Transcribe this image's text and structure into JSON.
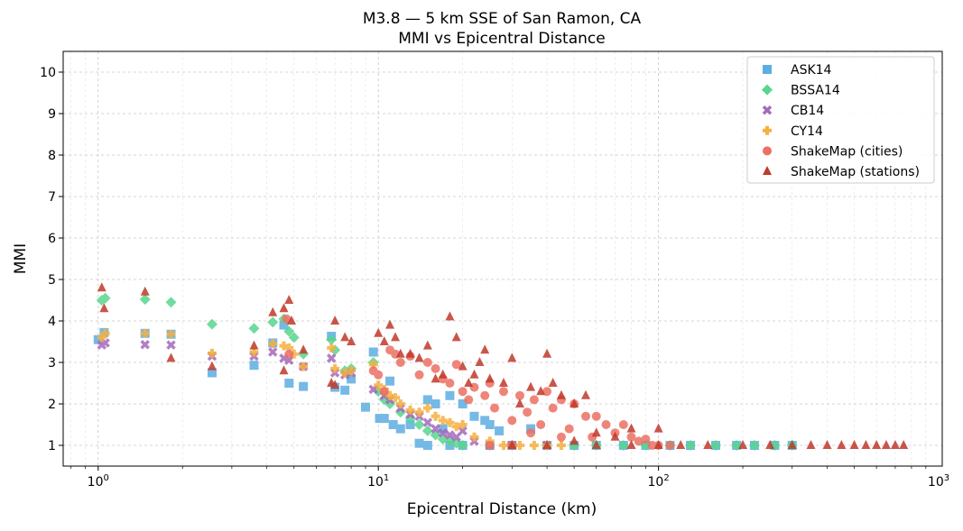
{
  "chart_data": {
    "type": "scatter",
    "title": "M3.8 — 5 km SSE of San Ramon, CA",
    "subtitle": "MMI vs Epicentral Distance",
    "xlabel": "Epicentral Distance (km)",
    "ylabel": "MMI",
    "xscale": "log",
    "xlim": [
      0.75,
      1030
    ],
    "ylim": [
      0.5,
      10.5
    ],
    "xticks": [
      {
        "value": 1,
        "base": "10",
        "exp": "0"
      },
      {
        "value": 10,
        "base": "10",
        "exp": "1"
      },
      {
        "value": 100,
        "base": "10",
        "exp": "2"
      },
      {
        "value": 1000,
        "base": "10",
        "exp": "3"
      }
    ],
    "yticks": [
      "1",
      "2",
      "3",
      "4",
      "5",
      "6",
      "7",
      "8",
      "9",
      "10"
    ],
    "grid": true,
    "legend_position": "top-right",
    "series": [
      {
        "name": "ASK14",
        "marker": "square",
        "color": "#5dade2",
        "points": [
          [
            1.0,
            3.55
          ],
          [
            1.05,
            3.72
          ],
          [
            1.47,
            3.7
          ],
          [
            1.82,
            3.68
          ],
          [
            2.55,
            2.75
          ],
          [
            3.6,
            2.93
          ],
          [
            4.2,
            3.47
          ],
          [
            4.6,
            3.9
          ],
          [
            4.8,
            2.5
          ],
          [
            5.4,
            2.42
          ],
          [
            6.8,
            3.63
          ],
          [
            7.0,
            2.4
          ],
          [
            7.6,
            2.33
          ],
          [
            8.0,
            2.6
          ],
          [
            9.0,
            1.92
          ],
          [
            9.6,
            3.25
          ],
          [
            10.1,
            1.65
          ],
          [
            10.5,
            1.65
          ],
          [
            11,
            2.55
          ],
          [
            11.3,
            1.5
          ],
          [
            12,
            1.4
          ],
          [
            13,
            1.5
          ],
          [
            14,
            1.05
          ],
          [
            15,
            2.1
          ],
          [
            16,
            2.0
          ],
          [
            17,
            1.4
          ],
          [
            18,
            2.2
          ],
          [
            20,
            2.0
          ],
          [
            22,
            1.7
          ],
          [
            24,
            1.6
          ],
          [
            25,
            1.5
          ],
          [
            27,
            1.35
          ],
          [
            30,
            1.0
          ],
          [
            35,
            1.4
          ],
          [
            15,
            1.0
          ],
          [
            18,
            1.0
          ],
          [
            20,
            1.0
          ],
          [
            25,
            1.0
          ],
          [
            40,
            1.0
          ],
          [
            50,
            1.0
          ],
          [
            60,
            1.0
          ],
          [
            75,
            1.0
          ],
          [
            90,
            1.0
          ],
          [
            110,
            1.0
          ],
          [
            130,
            1.0
          ],
          [
            160,
            1.0
          ],
          [
            190,
            1.0
          ],
          [
            220,
            1.0
          ],
          [
            260,
            1.0
          ],
          [
            300,
            1.0
          ]
        ]
      },
      {
        "name": "BSSA14",
        "marker": "diamond",
        "color": "#58d68d",
        "points": [
          [
            1.03,
            4.5
          ],
          [
            1.06,
            4.55
          ],
          [
            1.47,
            4.52
          ],
          [
            1.82,
            4.45
          ],
          [
            2.55,
            3.92
          ],
          [
            3.6,
            3.82
          ],
          [
            4.2,
            3.97
          ],
          [
            4.6,
            4.05
          ],
          [
            4.8,
            3.75
          ],
          [
            5.0,
            3.6
          ],
          [
            5.4,
            3.2
          ],
          [
            6.8,
            3.55
          ],
          [
            7.0,
            3.3
          ],
          [
            7.6,
            2.8
          ],
          [
            8.0,
            2.85
          ],
          [
            9.6,
            3.0
          ],
          [
            10,
            2.3
          ],
          [
            10.5,
            2.1
          ],
          [
            11,
            2.0
          ],
          [
            12,
            1.8
          ],
          [
            13,
            1.65
          ],
          [
            14,
            1.5
          ],
          [
            15,
            1.35
          ],
          [
            16,
            1.25
          ],
          [
            17,
            1.15
          ],
          [
            18,
            1.1
          ],
          [
            19,
            1.05
          ],
          [
            20,
            1.0
          ],
          [
            25,
            1.0
          ],
          [
            30,
            1.0
          ],
          [
            40,
            1.0
          ],
          [
            50,
            1.0
          ],
          [
            60,
            1.0
          ],
          [
            75,
            1.0
          ],
          [
            90,
            1.0
          ],
          [
            110,
            1.0
          ],
          [
            130,
            1.0
          ],
          [
            160,
            1.0
          ],
          [
            190,
            1.0
          ],
          [
            220,
            1.0
          ],
          [
            260,
            1.0
          ],
          [
            300,
            1.0
          ]
        ]
      },
      {
        "name": "CB14",
        "marker": "x",
        "color": "#a569bd",
        "points": [
          [
            1.03,
            3.42
          ],
          [
            1.06,
            3.47
          ],
          [
            1.47,
            3.43
          ],
          [
            1.82,
            3.42
          ],
          [
            2.55,
            3.15
          ],
          [
            3.6,
            3.15
          ],
          [
            4.2,
            3.25
          ],
          [
            4.6,
            3.1
          ],
          [
            4.8,
            3.05
          ],
          [
            5.4,
            2.9
          ],
          [
            6.8,
            3.1
          ],
          [
            7.0,
            2.75
          ],
          [
            7.6,
            2.7
          ],
          [
            8.0,
            2.75
          ],
          [
            9.6,
            2.35
          ],
          [
            10.5,
            2.2
          ],
          [
            11,
            2.1
          ],
          [
            12,
            1.9
          ],
          [
            13,
            1.75
          ],
          [
            14,
            1.7
          ],
          [
            15,
            1.55
          ],
          [
            16,
            1.4
          ],
          [
            17,
            1.3
          ],
          [
            18,
            1.25
          ],
          [
            19,
            1.2
          ],
          [
            20,
            1.35
          ],
          [
            22,
            1.1
          ],
          [
            25,
            1.0
          ],
          [
            30,
            1.0
          ],
          [
            40,
            1.0
          ]
        ]
      },
      {
        "name": "CY14",
        "marker": "plus",
        "color": "#f5b041",
        "points": [
          [
            1.03,
            3.6
          ],
          [
            1.06,
            3.7
          ],
          [
            1.47,
            3.7
          ],
          [
            1.82,
            3.68
          ],
          [
            2.55,
            3.22
          ],
          [
            3.6,
            3.25
          ],
          [
            4.2,
            3.45
          ],
          [
            4.6,
            3.4
          ],
          [
            4.8,
            3.35
          ],
          [
            5.0,
            3.2
          ],
          [
            5.4,
            2.9
          ],
          [
            6.8,
            3.35
          ],
          [
            7.0,
            2.85
          ],
          [
            7.6,
            2.75
          ],
          [
            8.0,
            2.8
          ],
          [
            9.6,
            2.95
          ],
          [
            10,
            2.45
          ],
          [
            10.5,
            2.35
          ],
          [
            11,
            2.2
          ],
          [
            11.5,
            2.15
          ],
          [
            12,
            2.0
          ],
          [
            13,
            1.85
          ],
          [
            14,
            1.8
          ],
          [
            15,
            1.9
          ],
          [
            16,
            1.7
          ],
          [
            17,
            1.6
          ],
          [
            18,
            1.55
          ],
          [
            19,
            1.45
          ],
          [
            20,
            1.5
          ],
          [
            22,
            1.2
          ],
          [
            25,
            1.1
          ],
          [
            28,
            1.0
          ],
          [
            32,
            1.0
          ],
          [
            36,
            1.0
          ],
          [
            40,
            1.0
          ],
          [
            45,
            1.0
          ]
        ]
      },
      {
        "name": "ShakeMap (cities)",
        "marker": "circle",
        "color": "#ec7063",
        "points": [
          [
            4.7,
            4.05
          ],
          [
            4.8,
            3.2
          ],
          [
            9.6,
            2.8
          ],
          [
            10,
            2.7
          ],
          [
            10.5,
            2.3
          ],
          [
            11,
            3.3
          ],
          [
            11.5,
            3.2
          ],
          [
            12,
            3.0
          ],
          [
            13,
            3.15
          ],
          [
            14,
            2.7
          ],
          [
            15,
            3.0
          ],
          [
            16,
            2.85
          ],
          [
            17,
            2.6
          ],
          [
            18,
            2.5
          ],
          [
            19,
            2.95
          ],
          [
            20,
            2.3
          ],
          [
            21,
            2.1
          ],
          [
            22,
            2.4
          ],
          [
            24,
            2.2
          ],
          [
            25,
            2.5
          ],
          [
            26,
            1.9
          ],
          [
            28,
            2.3
          ],
          [
            30,
            1.6
          ],
          [
            32,
            2.2
          ],
          [
            34,
            1.8
          ],
          [
            36,
            2.1
          ],
          [
            38,
            1.5
          ],
          [
            40,
            2.3
          ],
          [
            42,
            1.9
          ],
          [
            45,
            2.1
          ],
          [
            48,
            1.4
          ],
          [
            50,
            2.0
          ],
          [
            55,
            1.7
          ],
          [
            58,
            1.2
          ],
          [
            60,
            1.7
          ],
          [
            65,
            1.5
          ],
          [
            70,
            1.3
          ],
          [
            75,
            1.5
          ],
          [
            80,
            1.2
          ],
          [
            85,
            1.1
          ],
          [
            90,
            1.15
          ],
          [
            95,
            1.0
          ],
          [
            100,
            1.0
          ],
          [
            110,
            1.0
          ],
          [
            35,
            1.3
          ],
          [
            45,
            1.2
          ],
          [
            25,
            1.0
          ],
          [
            30,
            1.0
          ]
        ]
      },
      {
        "name": "ShakeMap (stations)",
        "marker": "triangle",
        "color": "#c0392b",
        "points": [
          [
            1.03,
            4.8
          ],
          [
            1.05,
            4.3
          ],
          [
            1.47,
            4.7
          ],
          [
            1.82,
            3.1
          ],
          [
            2.55,
            2.9
          ],
          [
            3.6,
            3.4
          ],
          [
            4.2,
            4.2
          ],
          [
            4.6,
            4.3
          ],
          [
            4.6,
            2.8
          ],
          [
            4.8,
            4.5
          ],
          [
            4.9,
            4.0
          ],
          [
            5.4,
            3.3
          ],
          [
            6.8,
            2.5
          ],
          [
            7.0,
            4.0
          ],
          [
            7.0,
            2.45
          ],
          [
            7.6,
            3.6
          ],
          [
            8,
            3.5
          ],
          [
            10,
            3.7
          ],
          [
            10.5,
            3.5
          ],
          [
            11,
            3.9
          ],
          [
            11.5,
            3.6
          ],
          [
            12,
            3.2
          ],
          [
            13,
            3.2
          ],
          [
            14,
            3.1
          ],
          [
            15,
            3.4
          ],
          [
            16,
            2.6
          ],
          [
            17,
            2.7
          ],
          [
            18,
            4.1
          ],
          [
            19,
            3.6
          ],
          [
            20,
            2.9
          ],
          [
            21,
            2.5
          ],
          [
            22,
            2.7
          ],
          [
            23,
            3.0
          ],
          [
            24,
            3.3
          ],
          [
            25,
            2.6
          ],
          [
            28,
            2.5
          ],
          [
            30,
            3.1
          ],
          [
            32,
            2.0
          ],
          [
            35,
            2.4
          ],
          [
            38,
            2.3
          ],
          [
            40,
            3.2
          ],
          [
            42,
            2.5
          ],
          [
            45,
            2.2
          ],
          [
            50,
            2.0
          ],
          [
            55,
            2.2
          ],
          [
            60,
            1.3
          ],
          [
            70,
            1.2
          ],
          [
            80,
            1.4
          ],
          [
            100,
            1.4
          ],
          [
            30,
            1.0
          ],
          [
            40,
            1.0
          ],
          [
            50,
            1.1
          ],
          [
            60,
            1.0
          ],
          [
            80,
            1.0
          ],
          [
            100,
            1.0
          ],
          [
            120,
            1.0
          ],
          [
            150,
            1.0
          ],
          [
            200,
            1.0
          ],
          [
            250,
            1.0
          ],
          [
            300,
            1.0
          ],
          [
            350,
            1.0
          ],
          [
            400,
            1.0
          ],
          [
            450,
            1.0
          ],
          [
            500,
            1.0
          ],
          [
            550,
            1.0
          ],
          [
            600,
            1.0
          ],
          [
            650,
            1.0
          ],
          [
            700,
            1.0
          ],
          [
            750,
            1.0
          ]
        ]
      }
    ]
  }
}
